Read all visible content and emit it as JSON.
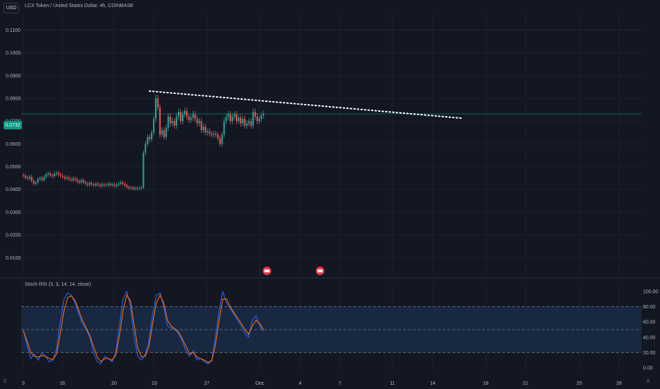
{
  "header": {
    "currency": "USD",
    "title": "LCX Token / United States Dollar, 4h, COINBASE"
  },
  "last_price_label": "0.0732",
  "stoch_label": "Stoch RSI (3, 3, 14, 14, close)",
  "colors": {
    "background": "#131722",
    "up": "#26a69a",
    "down": "#ef5350",
    "k_line": "#2962ff",
    "d_line": "#ff6d00",
    "band": "#1a2a44",
    "price_line": "#089981"
  },
  "chart_data": [
    {
      "type": "candlestick",
      "title": "LCX Token / United States Dollar, 4h, COINBASE",
      "y_ticks": [
        "0.1100",
        "0.1000",
        "0.0900",
        "0.0800",
        "0.0700",
        "0.0600",
        "0.0500",
        "0.0400",
        "0.0300",
        "0.0200",
        "0.0100"
      ],
      "x_ticks": [
        "3",
        "16",
        "20",
        "23",
        "27",
        "Dec",
        "4",
        "7",
        "11",
        "14",
        "18",
        "21",
        "25",
        "28"
      ],
      "ylim": [
        0.002,
        0.117
      ],
      "trendline": {
        "start_price": 0.0832,
        "end_price": 0.0713,
        "style": "dotted white"
      },
      "last_price": 0.0732,
      "series": [
        {
          "name": "price",
          "closes": [
            0.046,
            0.0452,
            0.0448,
            0.0455,
            0.0438,
            0.0425,
            0.043,
            0.0445,
            0.045,
            0.0442,
            0.0455,
            0.0465,
            0.047,
            0.0462,
            0.0458,
            0.0468,
            0.0472,
            0.0465,
            0.046,
            0.0455,
            0.0448,
            0.0452,
            0.0445,
            0.044,
            0.0448,
            0.0443,
            0.0435,
            0.043,
            0.044,
            0.0432,
            0.0425,
            0.042,
            0.0428,
            0.0422,
            0.0418,
            0.0425,
            0.042,
            0.0415,
            0.0422,
            0.0418,
            0.042,
            0.0425,
            0.0418,
            0.0422,
            0.0415,
            0.042,
            0.0425,
            0.043,
            0.0424,
            0.0418,
            0.041,
            0.0405,
            0.0408,
            0.0402,
            0.0406,
            0.0403,
            0.0405,
            0.0408,
            0.056,
            0.06,
            0.063,
            0.062,
            0.065,
            0.071,
            0.08,
            0.076,
            0.064,
            0.066,
            0.063,
            0.067,
            0.072,
            0.069,
            0.07,
            0.068,
            0.072,
            0.074,
            0.07,
            0.073,
            0.0745,
            0.072,
            0.0705,
            0.0715,
            0.073,
            0.071,
            0.069,
            0.07,
            0.066,
            0.0675,
            0.065,
            0.0655,
            0.0645,
            0.064,
            0.0645,
            0.064,
            0.0625,
            0.06,
            0.064,
            0.07,
            0.072,
            0.073,
            0.07,
            0.072,
            0.073,
            0.07,
            0.0715,
            0.069,
            0.071,
            0.068,
            0.069,
            0.07,
            0.068,
            0.074,
            0.072,
            0.07,
            0.071,
            0.0725,
            0.0732
          ]
        }
      ]
    },
    {
      "type": "line",
      "title": "Stoch RSI (3, 3, 14, 14, close)",
      "y_ticks": [
        "100.00",
        "80.00",
        "60.00",
        "40.00",
        "20.00",
        "0.00"
      ],
      "bands": [
        80,
        50,
        20
      ],
      "series": [
        {
          "name": "K",
          "values": [
            50,
            30,
            12,
            18,
            10,
            20,
            15,
            8,
            10,
            25,
            60,
            90,
            98,
            95,
            85,
            70,
            58,
            50,
            40,
            20,
            8,
            5,
            15,
            12,
            8,
            20,
            55,
            90,
            100,
            80,
            40,
            15,
            10,
            18,
            35,
            70,
            95,
            98,
            80,
            55,
            52,
            50,
            45,
            35,
            22,
            15,
            22,
            10,
            12,
            8,
            5,
            10,
            40,
            75,
            100,
            85,
            78,
            70,
            62,
            55,
            45,
            40,
            62,
            68,
            55,
            48
          ]
        },
        {
          "name": "D",
          "values": [
            48,
            35,
            20,
            15,
            14,
            16,
            15,
            12,
            11,
            18,
            45,
            75,
            92,
            94,
            88,
            75,
            62,
            52,
            42,
            28,
            14,
            8,
            12,
            12,
            10,
            16,
            42,
            75,
            95,
            88,
            55,
            25,
            14,
            15,
            28,
            58,
            85,
            95,
            85,
            62,
            55,
            51,
            47,
            38,
            28,
            18,
            20,
            14,
            12,
            10,
            7,
            9,
            30,
            62,
            90,
            90,
            80,
            72,
            65,
            58,
            50,
            44,
            55,
            62,
            58,
            50
          ]
        }
      ]
    }
  ],
  "footer": {
    "tz": "Z",
    "auto": "A"
  }
}
